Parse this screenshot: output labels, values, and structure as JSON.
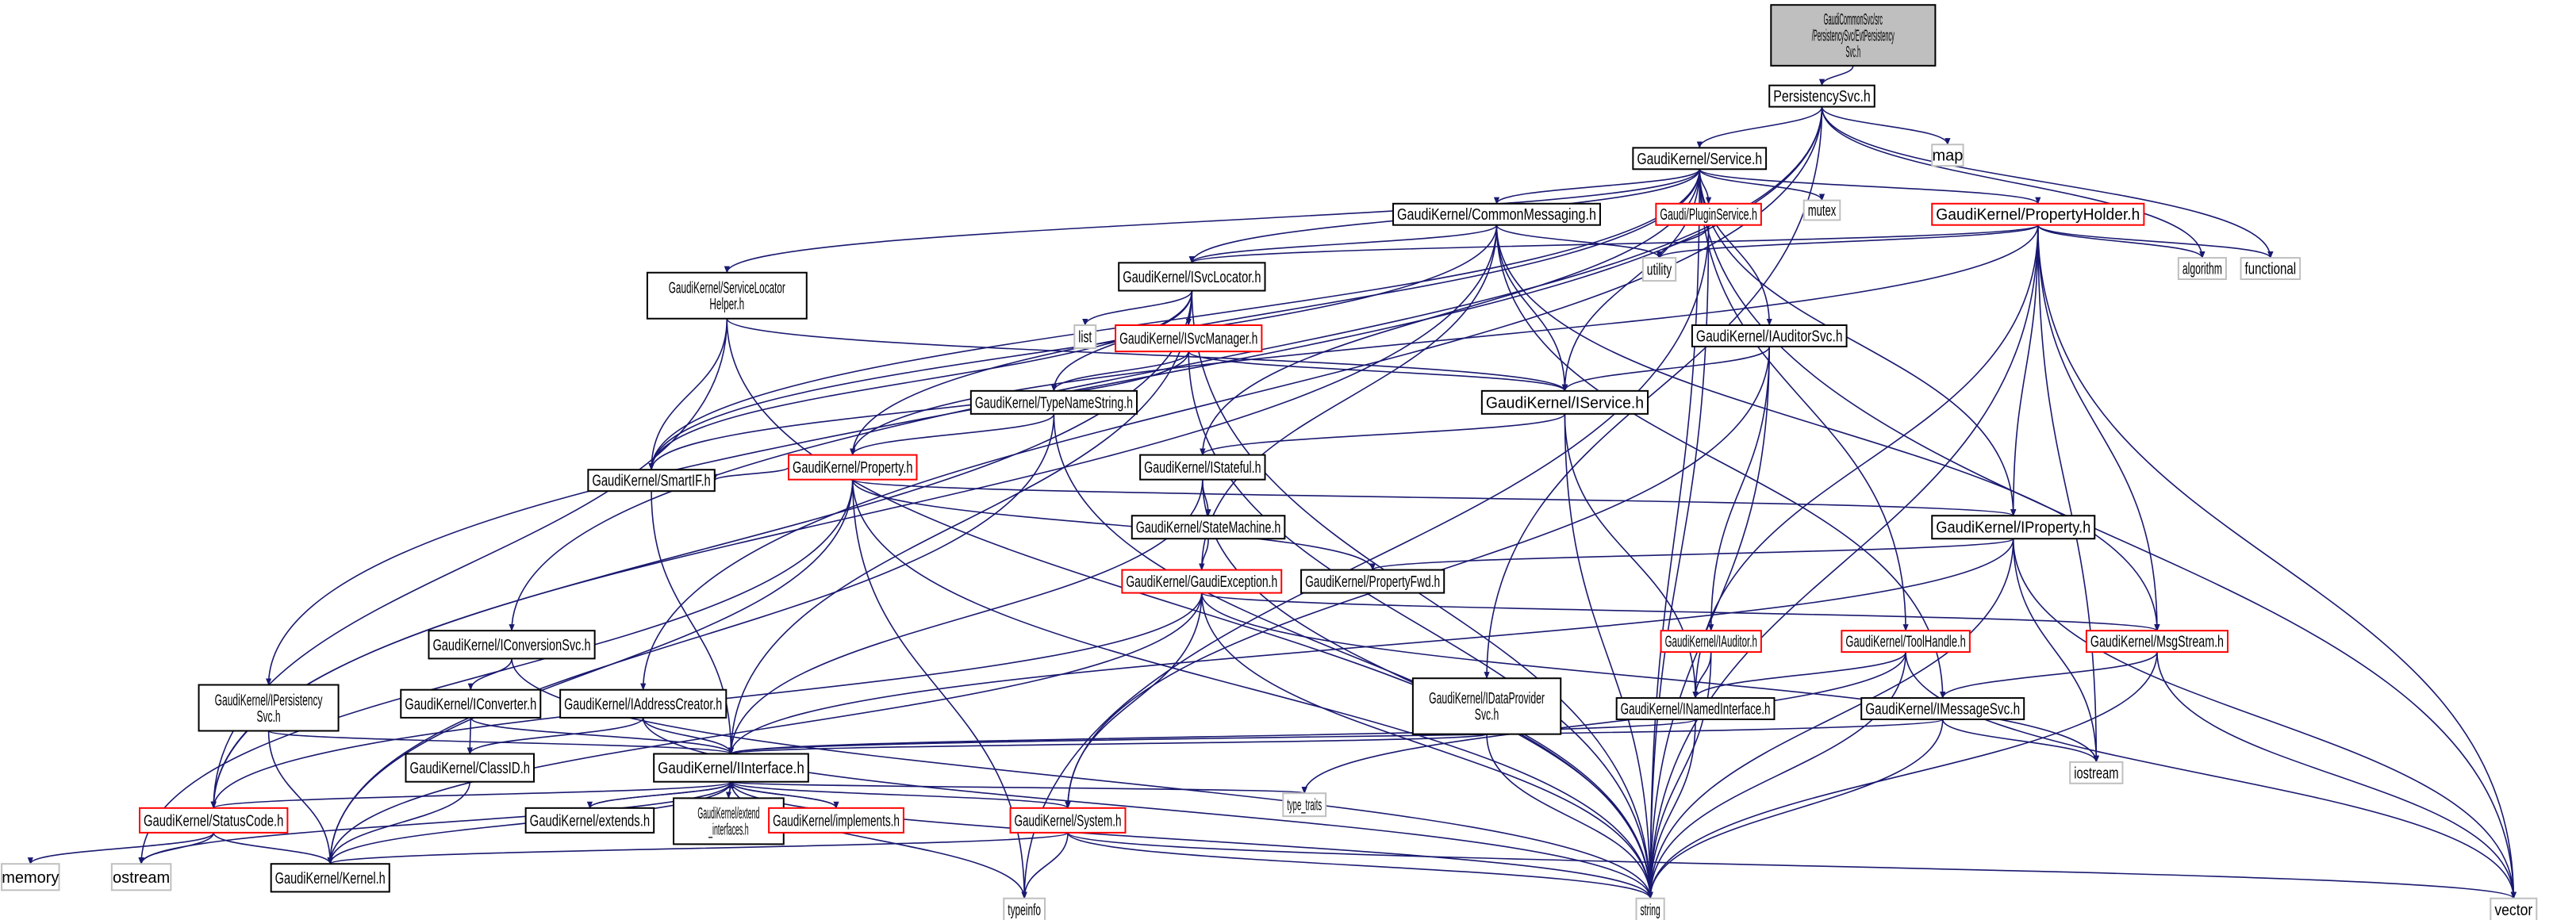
{
  "graph": {
    "edge_color": "#191970",
    "node_styles": {
      "root": {
        "fill": "#bfbfbf",
        "stroke": "#000000"
      },
      "normal": {
        "fill": "#ffffff",
        "stroke": "#000000"
      },
      "red": {
        "fill": "#ffffff",
        "stroke": "#ff0000"
      },
      "system": {
        "fill": "#ffffff",
        "stroke": "#bfbfbf"
      }
    },
    "nodes": [
      {
        "id": "root",
        "label": "GaudiCommonSvc/src\n/PersistencySvc/EvtPersistency\nSvc.h",
        "style": "root"
      },
      {
        "id": "PersistencySvc",
        "label": "PersistencySvc.h",
        "style": "normal"
      },
      {
        "id": "map",
        "label": "map",
        "style": "system"
      },
      {
        "id": "Service",
        "label": "GaudiKernel/Service.h",
        "style": "normal"
      },
      {
        "id": "mutex",
        "label": "mutex",
        "style": "system"
      },
      {
        "id": "PluginService",
        "label": "Gaudi/PluginService.h",
        "style": "red"
      },
      {
        "id": "PropertyHolder",
        "label": "GaudiKernel/PropertyHolder.h",
        "style": "red"
      },
      {
        "id": "CommonMessaging",
        "label": "GaudiKernel/CommonMessaging.h",
        "style": "normal"
      },
      {
        "id": "algorithm",
        "label": "algorithm",
        "style": "system"
      },
      {
        "id": "functional",
        "label": "functional",
        "style": "system"
      },
      {
        "id": "utility",
        "label": "utility",
        "style": "system"
      },
      {
        "id": "ISvcLocator",
        "label": "GaudiKernel/ISvcLocator.h",
        "style": "normal"
      },
      {
        "id": "ServiceLocatorHelper",
        "label": "GaudiKernel/ServiceLocator\nHelper.h",
        "style": "normal"
      },
      {
        "id": "list",
        "label": "list",
        "style": "system"
      },
      {
        "id": "ISvcManager",
        "label": "GaudiKernel/ISvcManager.h",
        "style": "red"
      },
      {
        "id": "IAuditorSvc",
        "label": "GaudiKernel/IAuditorSvc.h",
        "style": "normal"
      },
      {
        "id": "TypeNameString",
        "label": "GaudiKernel/TypeNameString.h",
        "style": "normal"
      },
      {
        "id": "IService",
        "label": "GaudiKernel/IService.h",
        "style": "normal"
      },
      {
        "id": "Property",
        "label": "GaudiKernel/Property.h",
        "style": "red"
      },
      {
        "id": "IStateful",
        "label": "GaudiKernel/IStateful.h",
        "style": "normal"
      },
      {
        "id": "SmartIF",
        "label": "GaudiKernel/SmartIF.h",
        "style": "normal"
      },
      {
        "id": "StateMachine",
        "label": "GaudiKernel/StateMachine.h",
        "style": "normal"
      },
      {
        "id": "IProperty",
        "label": "GaudiKernel/IProperty.h",
        "style": "normal"
      },
      {
        "id": "PropertyFwd",
        "label": "GaudiKernel/PropertyFwd.h",
        "style": "normal"
      },
      {
        "id": "GaudiException",
        "label": "GaudiKernel/GaudiException.h",
        "style": "red"
      },
      {
        "id": "IConversionSvc",
        "label": "GaudiKernel/IConversionSvc.h",
        "style": "normal"
      },
      {
        "id": "IAuditor",
        "label": "GaudiKernel/IAuditor.h",
        "style": "red"
      },
      {
        "id": "ToolHandle",
        "label": "GaudiKernel/ToolHandle.h",
        "style": "red"
      },
      {
        "id": "MsgStream",
        "label": "GaudiKernel/MsgStream.h",
        "style": "red"
      },
      {
        "id": "IPersistencySvc",
        "label": "GaudiKernel/IPersistency\nSvc.h",
        "style": "normal"
      },
      {
        "id": "IConverter",
        "label": "GaudiKernel/IConverter.h",
        "style": "normal"
      },
      {
        "id": "IAddressCreator",
        "label": "GaudiKernel/IAddressCreator.h",
        "style": "normal"
      },
      {
        "id": "IDataProviderSvc",
        "label": "GaudiKernel/IDataProvider\nSvc.h",
        "style": "normal"
      },
      {
        "id": "INamedInterface",
        "label": "GaudiKernel/INamedInterface.h",
        "style": "normal"
      },
      {
        "id": "IMessageSvc",
        "label": "GaudiKernel/IMessageSvc.h",
        "style": "normal"
      },
      {
        "id": "IInterface",
        "label": "GaudiKernel/IInterface.h",
        "style": "normal"
      },
      {
        "id": "ClassID",
        "label": "GaudiKernel/ClassID.h",
        "style": "normal"
      },
      {
        "id": "iostream",
        "label": "iostream",
        "style": "system"
      },
      {
        "id": "type_traits",
        "label": "type_traits",
        "style": "system"
      },
      {
        "id": "StatusCode",
        "label": "GaudiKernel/StatusCode.h",
        "style": "red"
      },
      {
        "id": "extends",
        "label": "GaudiKernel/extends.h",
        "style": "normal"
      },
      {
        "id": "extend_interfaces",
        "label": "GaudiKernel/extend\n_interfaces.h",
        "style": "normal"
      },
      {
        "id": "implements",
        "label": "GaudiKernel/implements.h",
        "style": "red"
      },
      {
        "id": "System",
        "label": "GaudiKernel/System.h",
        "style": "red"
      },
      {
        "id": "memory",
        "label": "memory",
        "style": "system"
      },
      {
        "id": "ostream",
        "label": "ostream",
        "style": "system"
      },
      {
        "id": "Kernel",
        "label": "GaudiKernel/Kernel.h",
        "style": "normal"
      },
      {
        "id": "typeinfo",
        "label": "typeinfo",
        "style": "system"
      },
      {
        "id": "string",
        "label": "string",
        "style": "system"
      },
      {
        "id": "vector",
        "label": "vector",
        "style": "system"
      }
    ],
    "edges": [
      [
        "root",
        "PersistencySvc"
      ],
      [
        "PersistencySvc",
        "Service"
      ],
      [
        "PersistencySvc",
        "map"
      ],
      [
        "PersistencySvc",
        "algorithm"
      ],
      [
        "PersistencySvc",
        "functional"
      ],
      [
        "PersistencySvc",
        "IPersistencySvc"
      ],
      [
        "PersistencySvc",
        "IConversionSvc"
      ],
      [
        "PersistencySvc",
        "IAddressCreator"
      ],
      [
        "PersistencySvc",
        "IDataProviderSvc"
      ],
      [
        "Service",
        "CommonMessaging"
      ],
      [
        "Service",
        "PluginService"
      ],
      [
        "Service",
        "mutex"
      ],
      [
        "Service",
        "PropertyHolder"
      ],
      [
        "Service",
        "IAuditorSvc"
      ],
      [
        "Service",
        "ISvcLocator"
      ],
      [
        "Service",
        "ServiceLocatorHelper"
      ],
      [
        "Service",
        "IService"
      ],
      [
        "Service",
        "IStateful"
      ],
      [
        "Service",
        "IProperty"
      ],
      [
        "Service",
        "ToolHandle"
      ],
      [
        "Service",
        "SmartIF"
      ],
      [
        "Service",
        "Property"
      ],
      [
        "Service",
        "vector"
      ],
      [
        "Service",
        "string"
      ],
      [
        "CommonMessaging",
        "ISvcLocator"
      ],
      [
        "CommonMessaging",
        "utility"
      ],
      [
        "CommonMessaging",
        "IService"
      ],
      [
        "CommonMessaging",
        "MsgStream"
      ],
      [
        "CommonMessaging",
        "IMessageSvc"
      ],
      [
        "CommonMessaging",
        "GaudiException"
      ],
      [
        "CommonMessaging",
        "SmartIF"
      ],
      [
        "CommonMessaging",
        "StatusCode"
      ],
      [
        "PluginService",
        "utility"
      ],
      [
        "PluginService",
        "typeinfo"
      ],
      [
        "PluginService",
        "string"
      ],
      [
        "PropertyHolder",
        "utility"
      ],
      [
        "PropertyHolder",
        "algorithm"
      ],
      [
        "PropertyHolder",
        "functional"
      ],
      [
        "PropertyHolder",
        "IProperty"
      ],
      [
        "PropertyHolder",
        "MsgStream"
      ],
      [
        "PropertyHolder",
        "INamedInterface"
      ],
      [
        "PropertyHolder",
        "iostream"
      ],
      [
        "PropertyHolder",
        "string"
      ],
      [
        "PropertyHolder",
        "vector"
      ],
      [
        "PropertyHolder",
        "Property"
      ],
      [
        "PropertyHolder",
        "ISvcLocator"
      ],
      [
        "ISvcLocator",
        "list"
      ],
      [
        "ISvcLocator",
        "ISvcManager"
      ],
      [
        "ISvcLocator",
        "TypeNameString"
      ],
      [
        "ISvcLocator",
        "IInterface"
      ],
      [
        "ISvcLocator",
        "SmartIF"
      ],
      [
        "ISvcLocator",
        "string"
      ],
      [
        "ISvcLocator",
        "StatusCode"
      ],
      [
        "ServiceLocatorHelper",
        "IService"
      ],
      [
        "ServiceLocatorHelper",
        "SmartIF"
      ],
      [
        "ServiceLocatorHelper",
        "string"
      ],
      [
        "ServiceLocatorHelper",
        "StatusCode"
      ],
      [
        "ISvcManager",
        "IService"
      ],
      [
        "ISvcManager",
        "TypeNameString"
      ],
      [
        "ISvcManager",
        "SmartIF"
      ],
      [
        "ISvcManager",
        "string"
      ],
      [
        "IAuditorSvc",
        "IService"
      ],
      [
        "IAuditorSvc",
        "IAuditor"
      ],
      [
        "IAuditorSvc",
        "string"
      ],
      [
        "IAuditorSvc",
        "System"
      ],
      [
        "TypeNameString",
        "Property"
      ],
      [
        "TypeNameString",
        "string"
      ],
      [
        "TypeNameString",
        "Kernel"
      ],
      [
        "IService",
        "IStateful"
      ],
      [
        "IService",
        "INamedInterface"
      ],
      [
        "IService",
        "string"
      ],
      [
        "Property",
        "SmartIF"
      ],
      [
        "Property",
        "IProperty"
      ],
      [
        "Property",
        "PropertyFwd"
      ],
      [
        "Property",
        "typeinfo"
      ],
      [
        "Property",
        "string"
      ],
      [
        "Property",
        "Kernel"
      ],
      [
        "Property",
        "ostream"
      ],
      [
        "IStateful",
        "StateMachine"
      ],
      [
        "IStateful",
        "IInterface"
      ],
      [
        "IStateful",
        "string"
      ],
      [
        "StateMachine",
        "GaudiException"
      ],
      [
        "IProperty",
        "PropertyFwd"
      ],
      [
        "IProperty",
        "IInterface"
      ],
      [
        "IProperty",
        "iostream"
      ],
      [
        "IProperty",
        "string"
      ],
      [
        "IProperty",
        "vector"
      ],
      [
        "GaudiException",
        "StatusCode"
      ],
      [
        "GaudiException",
        "System"
      ],
      [
        "GaudiException",
        "string"
      ],
      [
        "GaudiException",
        "MsgStream"
      ],
      [
        "GaudiException",
        "iostream"
      ],
      [
        "GaudiException",
        "Kernel"
      ],
      [
        "IConversionSvc",
        "IConverter"
      ],
      [
        "IConversionSvc",
        "string"
      ],
      [
        "IAuditor",
        "INamedInterface"
      ],
      [
        "IAuditor",
        "string"
      ],
      [
        "ToolHandle",
        "INamedInterface"
      ],
      [
        "ToolHandle",
        "type_traits"
      ],
      [
        "ToolHandle",
        "string"
      ],
      [
        "ToolHandle",
        "vector"
      ],
      [
        "MsgStream",
        "IMessageSvc"
      ],
      [
        "MsgStream",
        "string"
      ],
      [
        "MsgStream",
        "vector"
      ],
      [
        "IPersistencySvc",
        "IInterface"
      ],
      [
        "IPersistencySvc",
        "Kernel"
      ],
      [
        "IConverter",
        "ClassID"
      ],
      [
        "IConverter",
        "IInterface"
      ],
      [
        "IAddressCreator",
        "ClassID"
      ],
      [
        "IAddressCreator",
        "IInterface"
      ],
      [
        "IAddressCreator",
        "string"
      ],
      [
        "IDataProviderSvc",
        "IInterface"
      ],
      [
        "IDataProviderSvc",
        "string"
      ],
      [
        "INamedInterface",
        "IInterface"
      ],
      [
        "INamedInterface",
        "string"
      ],
      [
        "IMessageSvc",
        "IInterface"
      ],
      [
        "IMessageSvc",
        "iostream"
      ],
      [
        "IMessageSvc",
        "string"
      ],
      [
        "SmartIF",
        "IInterface"
      ],
      [
        "ClassID",
        "Kernel"
      ],
      [
        "IInterface",
        "StatusCode"
      ],
      [
        "IInterface",
        "extends"
      ],
      [
        "IInterface",
        "extend_interfaces"
      ],
      [
        "IInterface",
        "implements"
      ],
      [
        "IInterface",
        "System"
      ],
      [
        "IInterface",
        "Kernel"
      ],
      [
        "IInterface",
        "ostream"
      ],
      [
        "IInterface",
        "typeinfo"
      ],
      [
        "IInterface",
        "type_traits"
      ],
      [
        "IInterface",
        "string"
      ],
      [
        "extends",
        "IInterface"
      ],
      [
        "extend_interfaces",
        "IInterface"
      ],
      [
        "implements",
        "IInterface"
      ],
      [
        "StatusCode",
        "memory"
      ],
      [
        "StatusCode",
        "ostream"
      ],
      [
        "StatusCode",
        "Kernel"
      ],
      [
        "System",
        "Kernel"
      ],
      [
        "System",
        "typeinfo"
      ],
      [
        "System",
        "string"
      ],
      [
        "System",
        "vector"
      ]
    ]
  }
}
